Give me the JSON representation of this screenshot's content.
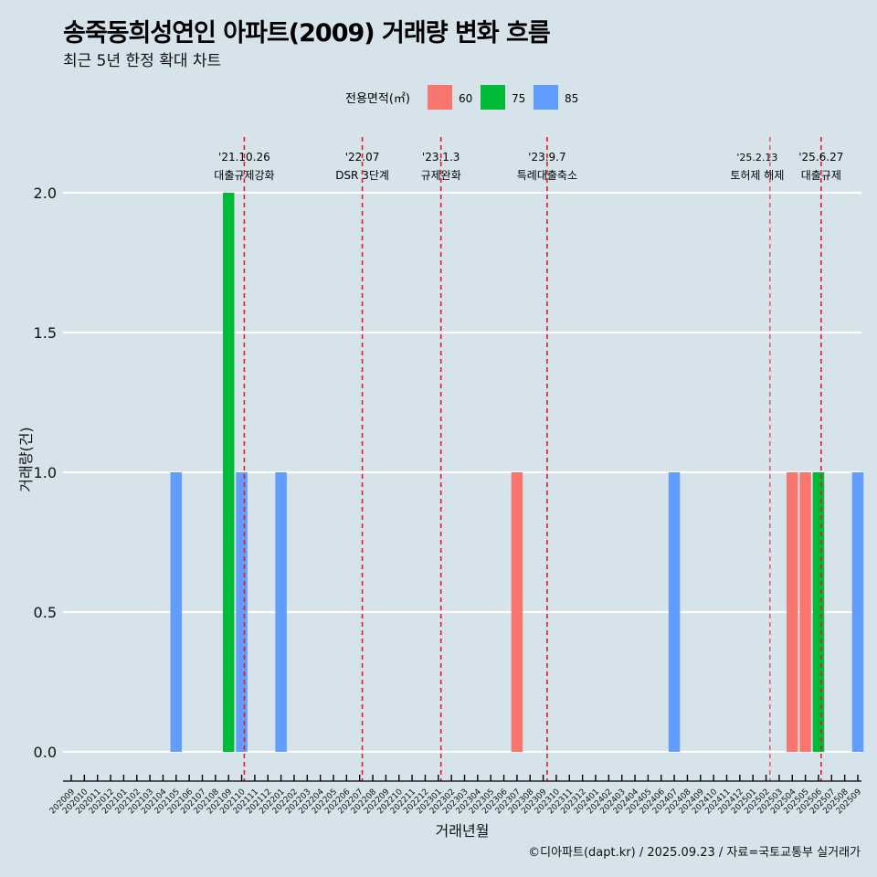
{
  "title": "송죽동희성연인 아파트(2009) 거래량 변화 흐름",
  "subtitle": "최근 5년 한정 확대 차트",
  "caption": "©디아파트(dapt.kr) / 2025.09.23 / 자료=국토교통부 실거래가",
  "chart_data": {
    "type": "bar",
    "xlabel": "거래년월",
    "ylabel": "거래량(건)",
    "ylim": [
      0,
      2
    ],
    "yticks": [
      0.0,
      0.5,
      1.0,
      1.5,
      2.0
    ],
    "ytick_labels": [
      "0.0",
      "0.5",
      "1.0",
      "1.5",
      "2.0"
    ],
    "grid": true,
    "legend": {
      "title": "전용면적(㎡)",
      "position": "top",
      "items": [
        {
          "name": "60",
          "color": "#F8766D"
        },
        {
          "name": "75",
          "color": "#00BA38"
        },
        {
          "name": "85",
          "color": "#619CFF"
        }
      ]
    },
    "categories": [
      "202009",
      "202010",
      "202011",
      "202012",
      "202101",
      "202102",
      "202103",
      "202104",
      "202105",
      "202106",
      "202107",
      "202108",
      "202109",
      "202110",
      "202111",
      "202112",
      "202201",
      "202202",
      "202203",
      "202204",
      "202205",
      "202206",
      "202207",
      "202208",
      "202209",
      "202210",
      "202211",
      "202212",
      "202301",
      "202302",
      "202303",
      "202304",
      "202305",
      "202306",
      "202307",
      "202308",
      "202309",
      "202310",
      "202311",
      "202312",
      "202401",
      "202402",
      "202403",
      "202404",
      "202405",
      "202406",
      "202407",
      "202408",
      "202409",
      "202410",
      "202411",
      "202412",
      "202501",
      "202502",
      "202503",
      "202504",
      "202505",
      "202506",
      "202507",
      "202508",
      "202509"
    ],
    "series": [
      {
        "name": "60",
        "color": "#F8766D",
        "values": [
          0,
          0,
          0,
          0,
          0,
          0,
          0,
          0,
          0,
          0,
          0,
          0,
          0,
          0,
          0,
          0,
          0,
          0,
          0,
          0,
          0,
          0,
          0,
          0,
          0,
          0,
          0,
          0,
          0,
          0,
          0,
          0,
          0,
          0,
          1,
          0,
          0,
          0,
          0,
          0,
          0,
          0,
          0,
          0,
          0,
          0,
          0,
          0,
          0,
          0,
          0,
          0,
          0,
          0,
          0,
          1,
          1,
          0,
          0,
          0,
          0
        ]
      },
      {
        "name": "75",
        "color": "#00BA38",
        "values": [
          0,
          0,
          0,
          0,
          0,
          0,
          0,
          0,
          0,
          0,
          0,
          0,
          2,
          0,
          0,
          0,
          0,
          0,
          0,
          0,
          0,
          0,
          0,
          0,
          0,
          0,
          0,
          0,
          0,
          0,
          0,
          0,
          0,
          0,
          0,
          0,
          0,
          0,
          0,
          0,
          0,
          0,
          0,
          0,
          0,
          0,
          0,
          0,
          0,
          0,
          0,
          0,
          0,
          0,
          0,
          0,
          0,
          1,
          0,
          0,
          0
        ]
      },
      {
        "name": "85",
        "color": "#619CFF",
        "values": [
          0,
          0,
          0,
          0,
          0,
          0,
          0,
          0,
          1,
          0,
          0,
          0,
          0,
          1,
          0,
          0,
          1,
          0,
          0,
          0,
          0,
          0,
          0,
          0,
          0,
          0,
          0,
          0,
          0,
          0,
          0,
          0,
          0,
          0,
          0,
          0,
          0,
          0,
          0,
          0,
          0,
          0,
          0,
          0,
          0,
          0,
          1,
          0,
          0,
          0,
          0,
          0,
          0,
          0,
          0,
          0,
          0,
          0,
          0,
          0,
          1
        ]
      }
    ],
    "annotations": [
      {
        "date": "'21.10.26",
        "label": "대출규제강화",
        "position": 13.2,
        "emphasis": "normal"
      },
      {
        "date": "'22.07",
        "label": "DSR 3단계",
        "position": 22.2,
        "emphasis": "normal"
      },
      {
        "date": "'23.1.3",
        "label": "규제완화",
        "position": 28.2,
        "emphasis": "normal"
      },
      {
        "date": "'23.9.7",
        "label": "특례대출축소",
        "position": 36.3,
        "emphasis": "normal"
      },
      {
        "date": "'25.2.13",
        "label": "토허제 해제",
        "position": 53.3,
        "emphasis": "light"
      },
      {
        "date": "'25.6.27",
        "label": "대출규제",
        "position": 57.2,
        "emphasis": "normal"
      }
    ]
  }
}
